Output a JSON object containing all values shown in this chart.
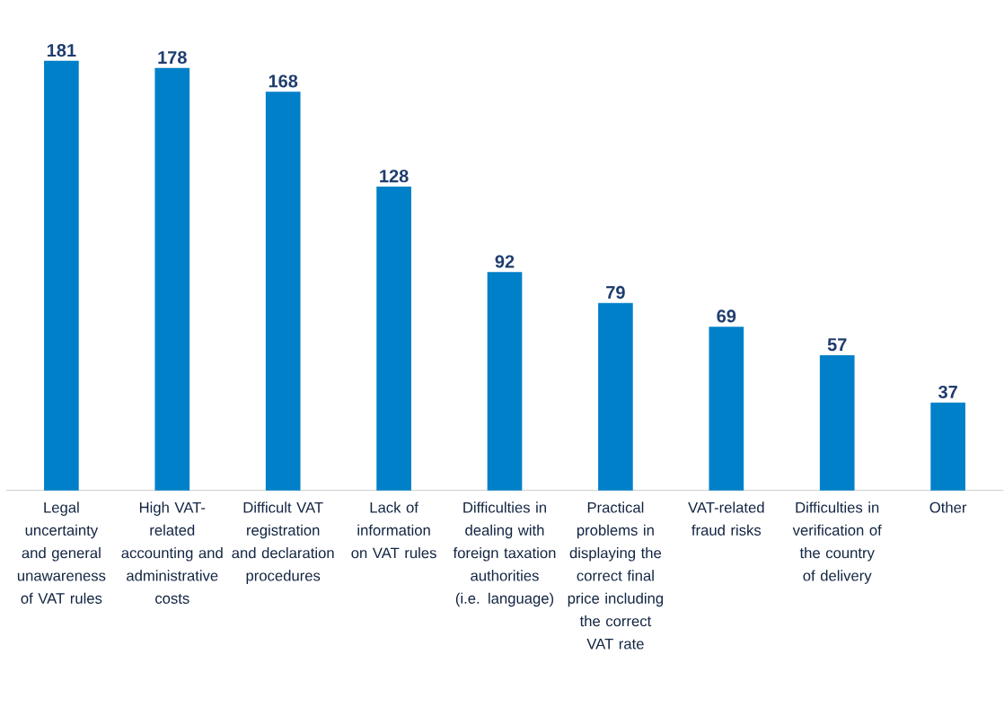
{
  "chart_data": {
    "type": "bar",
    "categories": [
      "Legal uncertainty and general unawareness of VAT rules",
      "High VAT-related accounting and administrative costs",
      "Difficult VAT registration and declaration procedures",
      "Lack of information on VAT rules",
      "Difficulties in dealing with foreign taxation authorities (i.e. language)",
      "Practical problems in displaying the correct final price including the correct VAT rate",
      "VAT-related fraud risks",
      "Difficulties in verification of the country of delivery",
      "Other"
    ],
    "values": [
      181,
      178,
      168,
      128,
      92,
      79,
      69,
      57,
      37
    ],
    "color": "#0080c8",
    "data_labels": true
  }
}
